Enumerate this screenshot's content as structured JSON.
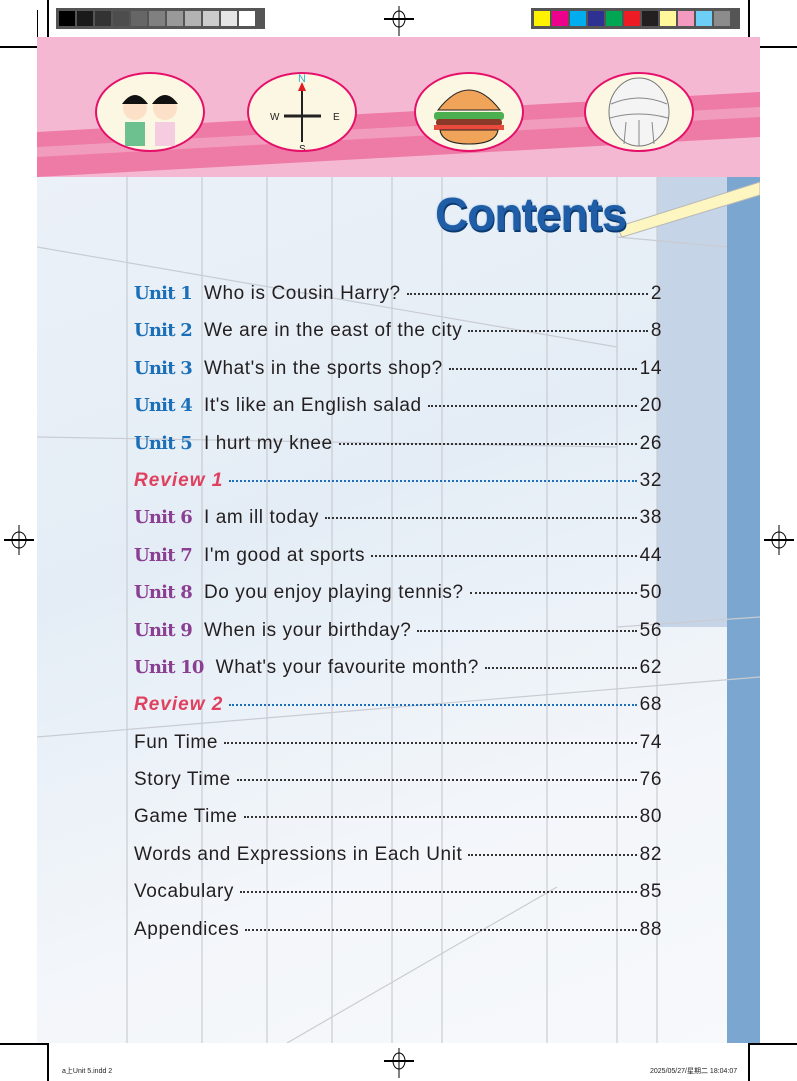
{
  "print_marks": {
    "gray_swatches": [
      "#000000",
      "#1a1a1a",
      "#333333",
      "#4d4d4d",
      "#666666",
      "#808080",
      "#999999",
      "#b3b3b3",
      "#cccccc",
      "#e6e6e6",
      "#ffffff"
    ],
    "color_swatches": [
      "#fff200",
      "#ec008c",
      "#00aeef",
      "#2e3192",
      "#00a651",
      "#ed1c24",
      "#231f20",
      "#fff799",
      "#f49ac1",
      "#6dcff6",
      "#8c8c8c"
    ],
    "footer_left": "a上Unit 5.indd 2",
    "footer_right": "2025/05/27/星期二 18:04:07"
  },
  "header": {
    "compass": {
      "north": "N",
      "south": "S",
      "east": "E",
      "west": "W"
    },
    "icons": [
      "children-icon",
      "compass-icon",
      "hamburger-icon",
      "volleyball-icon"
    ]
  },
  "title": "Contents",
  "colors": {
    "unit_blue": "#1a6fb8",
    "unit_purple": "#8a3f92",
    "review_red": "#e0405e",
    "header_pink": "#f5b8d2"
  },
  "toc": [
    {
      "label": "Unit 1",
      "title": "Who is Cousin Harry?",
      "page": "2",
      "kind": "unit-blue"
    },
    {
      "label": "Unit 2",
      "title": "We are in the east of the city",
      "page": "8",
      "kind": "unit-blue"
    },
    {
      "label": "Unit 3",
      "title": "What's in the sports shop?",
      "page": "14",
      "kind": "unit-blue"
    },
    {
      "label": "Unit 4",
      "title": "It's like an English salad",
      "page": "20",
      "kind": "unit-blue"
    },
    {
      "label": "Unit 5",
      "title": "I hurt my knee",
      "page": "26",
      "kind": "unit-blue"
    },
    {
      "label": "Review 1",
      "title": "",
      "page": "32",
      "kind": "review"
    },
    {
      "label": "Unit 6",
      "title": "I am ill today",
      "page": "38",
      "kind": "unit-purple"
    },
    {
      "label": "Unit 7",
      "title": "I'm good at sports",
      "page": "44",
      "kind": "unit-purple"
    },
    {
      "label": "Unit 8",
      "title": "Do you enjoy playing tennis?",
      "page": "50",
      "kind": "unit-purple"
    },
    {
      "label": "Unit 9",
      "title": "When is your birthday?",
      "page": "56",
      "kind": "unit-purple"
    },
    {
      "label": "Unit 10",
      "title": "What's your favourite month?",
      "page": "62",
      "kind": "unit-purple"
    },
    {
      "label": "Review 2",
      "title": "",
      "page": "68",
      "kind": "review"
    },
    {
      "label": "",
      "title": "Fun Time",
      "page": "74",
      "kind": "plain"
    },
    {
      "label": "",
      "title": "Story Time",
      "page": "76",
      "kind": "plain"
    },
    {
      "label": "",
      "title": "Game Time",
      "page": "80",
      "kind": "plain"
    },
    {
      "label": "",
      "title": "Words and Expressions in Each Unit",
      "page": "82",
      "kind": "plain"
    },
    {
      "label": "",
      "title": "Vocabulary",
      "page": "85",
      "kind": "plain"
    },
    {
      "label": "",
      "title": "Appendices",
      "page": "88",
      "kind": "plain"
    }
  ]
}
